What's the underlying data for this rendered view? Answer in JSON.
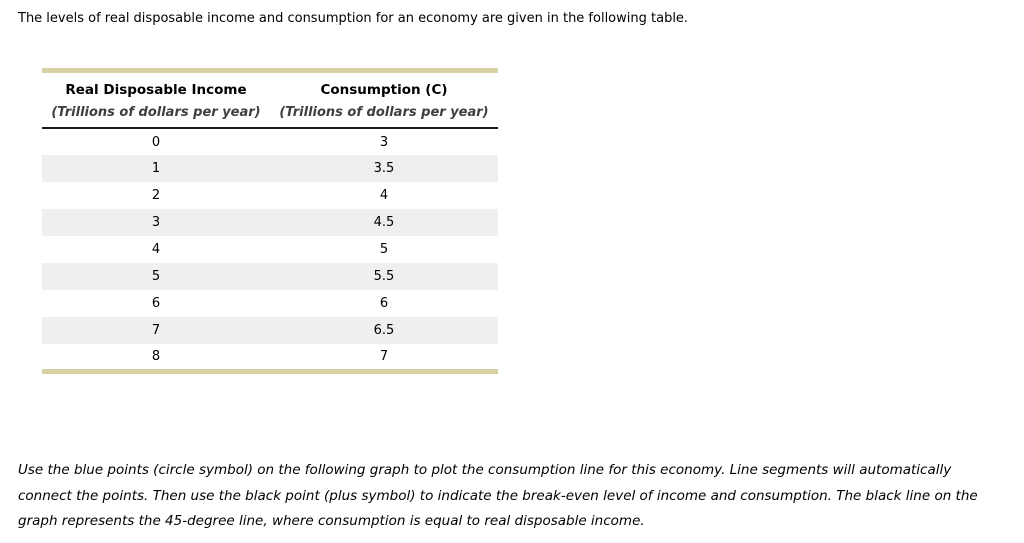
{
  "intro": "The levels of real disposable income and consumption for an economy are given in the following table.",
  "table": {
    "columns": [
      {
        "title": "Real Disposable Income",
        "subtitle": "(Trillions of dollars per year)"
      },
      {
        "title": "Consumption (C)",
        "subtitle": "(Trillions of dollars per year)"
      }
    ],
    "rows": [
      [
        "0",
        "3"
      ],
      [
        "1",
        "3.5"
      ],
      [
        "2",
        "4"
      ],
      [
        "3",
        "4.5"
      ],
      [
        "4",
        "5"
      ],
      [
        "5",
        "5.5"
      ],
      [
        "6",
        "6"
      ],
      [
        "7",
        "6.5"
      ],
      [
        "8",
        "7"
      ]
    ]
  },
  "instructions": "Use the blue points (circle symbol) on the following graph to plot the consumption line for this economy. Line segments will automatically connect the points. Then use the black point (plus symbol) to indicate the break-even level of income and consumption. The black line on the graph represents the 45-degree line, where consumption is equal to real disposable income.",
  "colors": {
    "table_border": "#d7d1a4",
    "row_stripe": "#efefef",
    "header_divider": "#1a1a1a"
  }
}
